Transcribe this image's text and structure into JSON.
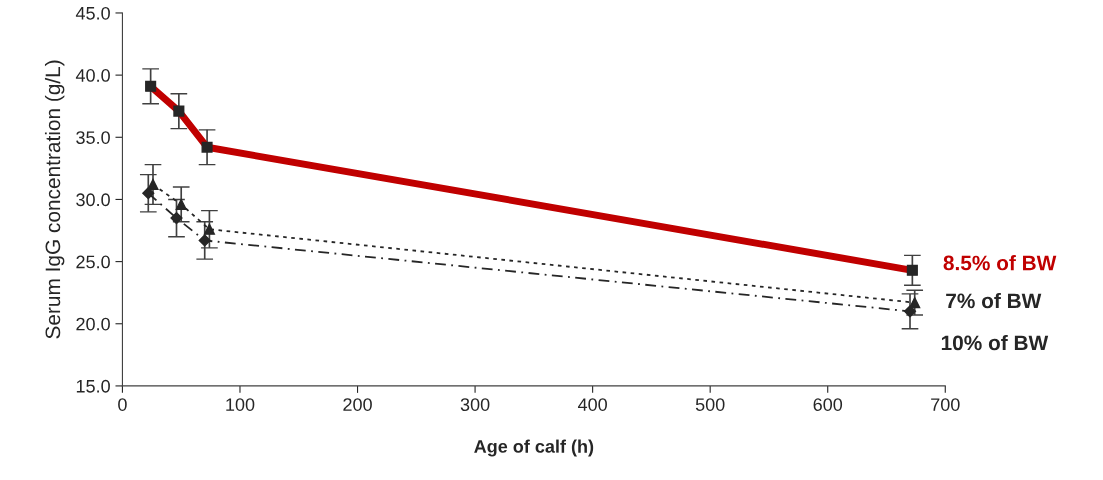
{
  "chart_data": {
    "type": "line",
    "xlabel": "Age of calf (h)",
    "ylabel": "Serum IgG concentration (g/L)",
    "xlim": [
      0,
      700
    ],
    "xticks": [
      0,
      100,
      200,
      300,
      400,
      500,
      600,
      700
    ],
    "ylim": [
      15,
      45
    ],
    "yticks": [
      {
        "value": 15,
        "label": "15.0"
      },
      {
        "value": 20,
        "label": "20.0"
      },
      {
        "value": 25,
        "label": "25.0"
      },
      {
        "value": 30,
        "label": "30.0"
      },
      {
        "value": 35,
        "label": "35.0"
      },
      {
        "value": 40,
        "label": "40.0"
      },
      {
        "value": 45,
        "label": "45.0"
      }
    ],
    "grid": false,
    "legend": false,
    "series": [
      {
        "name": "8.5% of BW",
        "color": "#c00000",
        "marker": "square",
        "line_style": "solid",
        "x": [
          24,
          48,
          72,
          672
        ],
        "values": [
          39.1,
          37.1,
          34.2,
          24.3
        ],
        "errors": [
          1.4,
          1.4,
          1.4,
          1.2
        ]
      },
      {
        "name": "7% of BW",
        "color": "#262626",
        "marker": "triangle",
        "line_style": "dotted",
        "x": [
          26,
          50,
          74,
          674
        ],
        "values": [
          31.2,
          29.6,
          27.6,
          21.7
        ],
        "errors": [
          1.6,
          1.4,
          1.5,
          1.0
        ]
      },
      {
        "name": "10% of BW",
        "color": "#262626",
        "marker": "diamond",
        "line_style": "dashed",
        "x": [
          22,
          46,
          70,
          670
        ],
        "values": [
          30.5,
          28.5,
          26.7,
          21.0
        ],
        "errors": [
          1.5,
          1.5,
          1.5,
          1.4
        ]
      }
    ]
  }
}
